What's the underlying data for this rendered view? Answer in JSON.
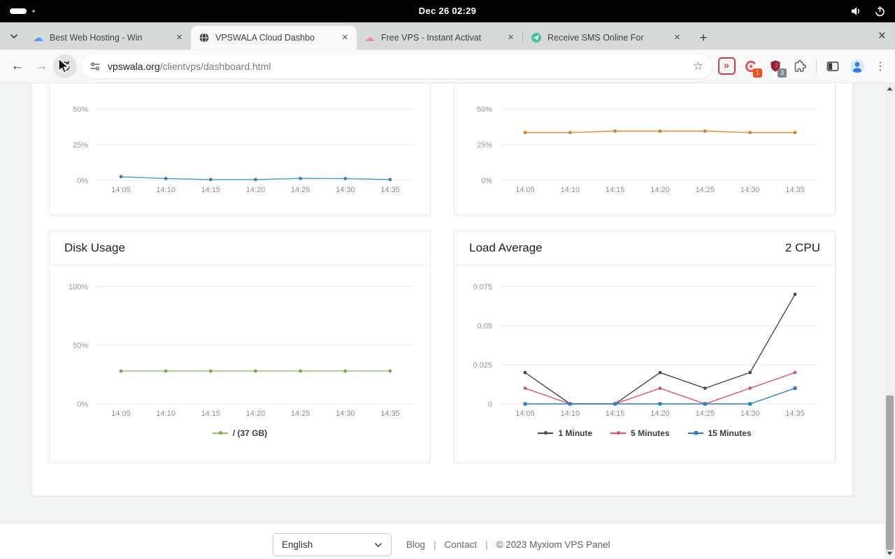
{
  "system_bar": {
    "clock": "Dec 26 02:29",
    "workspaces": {
      "count": 2,
      "active_index": 0
    }
  },
  "browser": {
    "tabs": [
      {
        "label": "Best Web Hosting - Win",
        "favicon": "cloud-blue",
        "active": false
      },
      {
        "label": "VPSWALA Cloud Dashbo",
        "favicon": "globe",
        "active": true
      },
      {
        "label": "Free VPS - Instant Activat",
        "favicon": "cloud-pink",
        "active": false
      },
      {
        "label": "Receive SMS Online For",
        "favicon": "paper-plane-teal",
        "active": false
      }
    ],
    "tab_close": "×",
    "new_tab": "+",
    "window_close": "×",
    "back": "←",
    "forward": "→",
    "url": {
      "domain": "vpswala.org",
      "path": "/clientvps/dashboard.html"
    },
    "star": "☆",
    "menu": "⋮",
    "extensions": [
      {
        "name": "fast-forward-extension",
        "badge": ""
      },
      {
        "name": "blocker-extension",
        "badge": "1"
      },
      {
        "name": "shield-extension",
        "badge": "3"
      }
    ]
  },
  "page": {
    "footer": {
      "language": "English",
      "blog": "Blog",
      "contact": "Contact",
      "separator": "|",
      "copyright": "© 2023  Myxiom VPS Panel"
    }
  },
  "chart_data": [
    {
      "id": "top_left",
      "type": "line",
      "title": "",
      "x": [
        "14:05",
        "14:10",
        "14:15",
        "14:20",
        "14:25",
        "14:30",
        "14:35"
      ],
      "yticks": [
        {
          "v": 0,
          "label": "0%"
        },
        {
          "v": 25,
          "label": "25%"
        },
        {
          "v": 50,
          "label": "50%"
        }
      ],
      "ymax": 50,
      "grid": true,
      "legend_position": "none",
      "series": [
        {
          "name": "",
          "color": "#4e97c7",
          "point_color": "#3a81b0",
          "marker": "circle",
          "values": [
            2.5,
            1.2,
            0.5,
            0.5,
            1.3,
            1.2,
            0.5
          ]
        }
      ]
    },
    {
      "id": "top_right",
      "type": "line",
      "title": "",
      "x": [
        "14:05",
        "14:10",
        "14:15",
        "14:20",
        "14:25",
        "14:30",
        "14:35"
      ],
      "yticks": [
        {
          "v": 0,
          "label": "0%"
        },
        {
          "v": 25,
          "label": "25%"
        },
        {
          "v": 50,
          "label": "50%"
        }
      ],
      "ymax": 50,
      "grid": true,
      "legend_position": "none",
      "series": [
        {
          "name": "",
          "color": "#e78b3c",
          "point_color": "#d97c2e",
          "marker": "circle",
          "values": [
            33.5,
            33.5,
            34.5,
            34.5,
            34.5,
            33.5,
            33.5
          ]
        }
      ]
    },
    {
      "id": "disk",
      "type": "line",
      "title": "Disk Usage",
      "x": [
        "14:05",
        "14:10",
        "14:15",
        "14:20",
        "14:25",
        "14:30",
        "14:35"
      ],
      "yticks": [
        {
          "v": 0,
          "label": "0%"
        },
        {
          "v": 50,
          "label": "50%"
        },
        {
          "v": 100,
          "label": "100%"
        }
      ],
      "ymax": 100,
      "grid": true,
      "legend_position": "bottom",
      "series": [
        {
          "name": "/ (37 GB)",
          "color": "#94bc62",
          "point_color": "#7aa94d",
          "marker": "circle",
          "values": [
            28,
            28,
            28,
            28,
            28,
            28,
            28
          ]
        }
      ]
    },
    {
      "id": "load",
      "type": "line",
      "title": "Load Average",
      "header_right": "2 CPU",
      "x": [
        "14:05",
        "14:10",
        "14:15",
        "14:20",
        "14:25",
        "14:30",
        "14:35"
      ],
      "yticks": [
        {
          "v": 0,
          "label": "0"
        },
        {
          "v": 0.025,
          "label": "0.025"
        },
        {
          "v": 0.05,
          "label": "0.05"
        },
        {
          "v": 0.075,
          "label": "0.075"
        }
      ],
      "ymax": 0.075,
      "grid": true,
      "legend_position": "bottom",
      "series": [
        {
          "name": "1 Minute",
          "color": "#45455e",
          "point_color": "#45455e",
          "marker": "circle",
          "values": [
            0.02,
            0,
            0,
            0.02,
            0.01,
            0.02,
            0.07
          ]
        },
        {
          "name": "5 Minutes",
          "color": "#d65270",
          "point_color": "#d65270",
          "marker": "circle",
          "values": [
            0.01,
            0,
            0,
            0.01,
            0,
            0.01,
            0.02
          ]
        },
        {
          "name": "15 Minutes",
          "color": "#2d7fc1",
          "point_color": "#2d7fc1",
          "marker": "square",
          "values": [
            0,
            0,
            0,
            0,
            0,
            0,
            0.01
          ]
        }
      ]
    }
  ]
}
